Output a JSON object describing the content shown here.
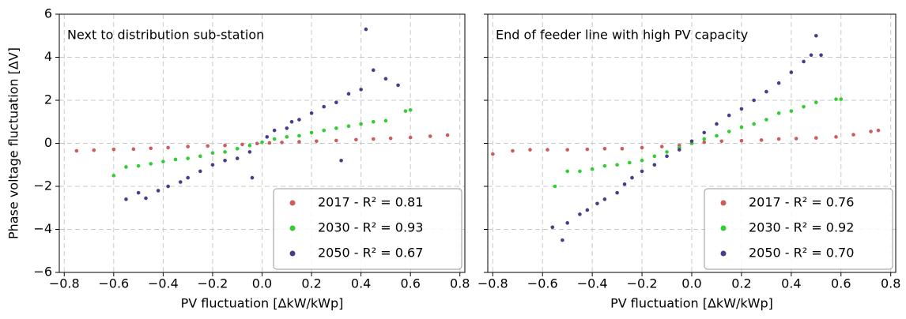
{
  "chart_data": [
    {
      "type": "scatter",
      "annotation": "Next to distribution sub-station",
      "xlabel": "PV fluctuation [ΔkW/kWp]",
      "ylabel": "Phase voltage fluctuation [ΔV]",
      "xlim": [
        -0.82,
        0.82
      ],
      "ylim": [
        -6,
        6
      ],
      "xticks": [
        {
          "value": -0.8,
          "label": "−0.8"
        },
        {
          "value": -0.6,
          "label": "−0.6"
        },
        {
          "value": -0.4,
          "label": "−0.4"
        },
        {
          "value": -0.2,
          "label": "−0.2"
        },
        {
          "value": 0,
          "label": "0.0"
        },
        0.2,
        0.4,
        0.6,
        0.8
      ],
      "yticks": [
        {
          "value": -6,
          "label": "−6"
        },
        {
          "value": -4,
          "label": "−4"
        },
        {
          "value": -2,
          "label": "−2"
        },
        0,
        2,
        4,
        6
      ],
      "grid": true,
      "legend": "lower right",
      "series": [
        {
          "name": "2017 - R² = 0.81",
          "color": "#cd5c5c",
          "x": [
            -0.75,
            -0.68,
            -0.6,
            -0.52,
            -0.45,
            -0.38,
            -0.3,
            -0.22,
            -0.15,
            -0.08,
            -0.02,
            0.03,
            0.08,
            0.15,
            0.22,
            0.3,
            0.38,
            0.45,
            0.52,
            0.6,
            0.68,
            0.75
          ],
          "values": [
            -0.35,
            -0.32,
            -0.28,
            -0.27,
            -0.23,
            -0.2,
            -0.15,
            -0.12,
            -0.1,
            -0.05,
            -0.01,
            0.02,
            0.04,
            0.07,
            0.1,
            0.13,
            0.17,
            0.2,
            0.23,
            0.27,
            0.33,
            0.38
          ]
        },
        {
          "name": "2030 - R² = 0.93",
          "color": "#32cd32",
          "x": [
            -0.6,
            -0.55,
            -0.5,
            -0.45,
            -0.4,
            -0.35,
            -0.3,
            -0.25,
            -0.2,
            -0.15,
            -0.1,
            -0.05,
            0,
            0.05,
            0.1,
            0.15,
            0.2,
            0.25,
            0.3,
            0.35,
            0.4,
            0.45,
            0.5,
            0.58,
            0.6
          ],
          "values": [
            -1.5,
            -1.1,
            -1.05,
            -0.95,
            -0.85,
            -0.75,
            -0.7,
            -0.6,
            -0.45,
            -0.4,
            -0.25,
            -0.1,
            0.05,
            0.2,
            0.3,
            0.35,
            0.5,
            0.6,
            0.7,
            0.8,
            0.9,
            1.0,
            1.05,
            1.5,
            1.55
          ]
        },
        {
          "name": "2050 - R² = 0.67",
          "color": "#483d8b",
          "x": [
            -0.55,
            -0.5,
            -0.47,
            -0.42,
            -0.38,
            -0.33,
            -0.3,
            -0.25,
            -0.2,
            -0.15,
            -0.1,
            -0.05,
            -0.04,
            0.02,
            0.05,
            0.1,
            0.12,
            0.15,
            0.2,
            0.25,
            0.3,
            0.32,
            0.35,
            0.4,
            0.42,
            0.45,
            0.5,
            0.55
          ],
          "values": [
            -2.6,
            -2.3,
            -2.55,
            -2.2,
            -2.0,
            -1.8,
            -1.6,
            -1.3,
            -1.0,
            -0.8,
            -0.7,
            -0.4,
            -1.6,
            0.3,
            0.6,
            0.7,
            1.0,
            1.1,
            1.4,
            1.7,
            1.9,
            -0.8,
            2.3,
            2.5,
            5.3,
            3.4,
            3.0,
            2.7
          ]
        }
      ]
    },
    {
      "type": "scatter",
      "annotation": "End of feeder line with high PV capacity",
      "xlabel": "PV fluctuation [ΔkW/kWp]",
      "xlim": [
        -0.82,
        0.82
      ],
      "ylim": [
        -6,
        6
      ],
      "xticks": [
        {
          "value": -0.8,
          "label": "−0.8"
        },
        {
          "value": -0.6,
          "label": "−0.6"
        },
        {
          "value": -0.4,
          "label": "−0.4"
        },
        {
          "value": -0.2,
          "label": "−0.2"
        },
        {
          "value": 0,
          "label": "0.0"
        },
        0.2,
        0.4,
        0.6,
        0.8
      ],
      "yticks": [
        -6,
        -4,
        -2,
        0,
        2,
        4,
        6
      ],
      "grid": true,
      "legend": "lower right",
      "series": [
        {
          "name": "2017 - R² = 0.76",
          "color": "#cd5c5c",
          "x": [
            -0.8,
            -0.72,
            -0.65,
            -0.58,
            -0.5,
            -0.42,
            -0.35,
            -0.28,
            -0.2,
            -0.12,
            -0.05,
            0,
            0.05,
            0.12,
            0.2,
            0.28,
            0.35,
            0.42,
            0.5,
            0.58,
            0.65,
            0.72,
            0.75
          ],
          "values": [
            -0.5,
            -0.35,
            -0.3,
            -0.3,
            -0.3,
            -0.28,
            -0.25,
            -0.25,
            -0.2,
            -0.15,
            -0.1,
            0,
            0.05,
            0.1,
            0.12,
            0.15,
            0.2,
            0.22,
            0.25,
            0.3,
            0.4,
            0.55,
            0.6
          ]
        },
        {
          "name": "2030 - R² = 0.92",
          "color": "#32cd32",
          "x": [
            -0.55,
            -0.5,
            -0.45,
            -0.4,
            -0.35,
            -0.3,
            -0.25,
            -0.2,
            -0.15,
            -0.1,
            -0.05,
            0,
            0.05,
            0.1,
            0.15,
            0.2,
            0.25,
            0.3,
            0.35,
            0.4,
            0.45,
            0.5,
            0.58,
            0.6
          ],
          "values": [
            -2.0,
            -1.3,
            -1.3,
            -1.2,
            -1.05,
            -1.0,
            -0.9,
            -0.8,
            -0.6,
            -0.4,
            -0.2,
            0,
            0.2,
            0.35,
            0.55,
            0.75,
            0.9,
            1.1,
            1.4,
            1.5,
            1.7,
            1.9,
            2.05,
            2.05
          ]
        },
        {
          "name": "2050 - R² = 0.70",
          "color": "#483d8b",
          "x": [
            -0.56,
            -0.52,
            -0.5,
            -0.45,
            -0.42,
            -0.38,
            -0.35,
            -0.3,
            -0.27,
            -0.24,
            -0.2,
            -0.15,
            -0.1,
            -0.05,
            0,
            0.05,
            0.1,
            0.15,
            0.2,
            0.25,
            0.3,
            0.35,
            0.4,
            0.45,
            0.48,
            0.5,
            0.52
          ],
          "values": [
            -3.9,
            -4.5,
            -3.7,
            -3.3,
            -3.1,
            -2.8,
            -2.6,
            -2.3,
            -1.9,
            -1.6,
            -1.3,
            -1.0,
            -0.6,
            -0.3,
            0.1,
            0.5,
            0.9,
            1.3,
            1.6,
            2.0,
            2.4,
            2.8,
            3.3,
            3.8,
            4.1,
            5.0,
            4.1
          ]
        }
      ]
    }
  ]
}
